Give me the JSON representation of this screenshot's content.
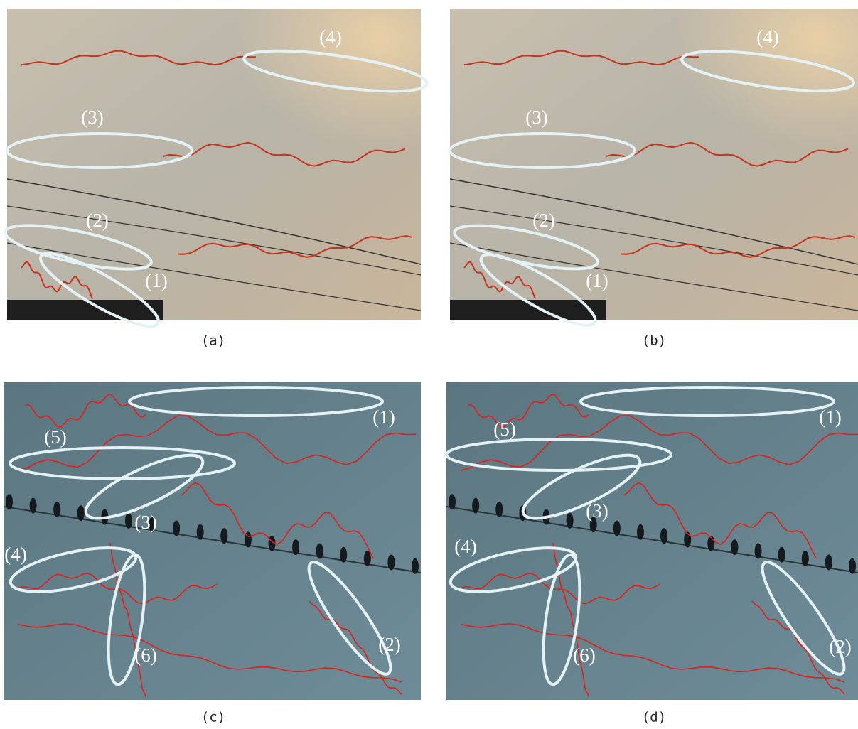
{
  "figure": {
    "panels": [
      {
        "caption": "(a)",
        "labels": [
          "(1)",
          "(2)",
          "(3)",
          "(4)"
        ]
      },
      {
        "caption": "(b)",
        "labels": [
          "(1)",
          "(2)",
          "(3)",
          "(4)"
        ]
      },
      {
        "caption": "(c)",
        "labels": [
          "(1)",
          "(2)",
          "(3)",
          "(4)",
          "(5)",
          "(6)"
        ]
      },
      {
        "caption": "(d)",
        "labels": [
          "(1)",
          "(2)",
          "(3)",
          "(4)",
          "(5)",
          "(6)"
        ]
      }
    ]
  }
}
